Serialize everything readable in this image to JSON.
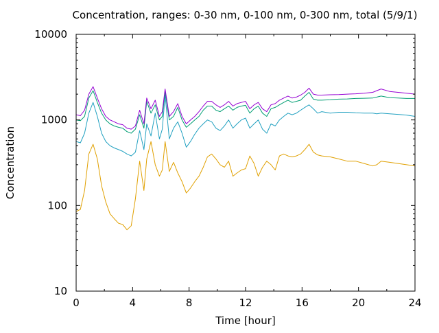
{
  "chart_data": {
    "type": "line",
    "title": "Concentration, ranges: 0-30 nm, 0-100 nm, 0-300 nm, total (5/9/1)",
    "xlabel": "Time [hour]",
    "ylabel": "Concentration",
    "xlim": [
      0,
      24
    ],
    "ylim": [
      10,
      10000
    ],
    "y_scale": "log",
    "grid": false,
    "x_ticks": [
      0,
      4,
      8,
      12,
      16,
      20,
      24
    ],
    "x_tick_labels": [
      "0",
      "4",
      "8",
      "12",
      "16",
      "20",
      "24"
    ],
    "y_ticks": [
      10,
      100,
      1000,
      10000
    ],
    "y_tick_labels": [
      "10",
      "100",
      "1000",
      "10000"
    ],
    "x": [
      0,
      0.3,
      0.6,
      0.9,
      1.2,
      1.5,
      1.8,
      2.1,
      2.4,
      2.7,
      3.0,
      3.3,
      3.6,
      3.9,
      4.2,
      4.5,
      4.8,
      5.0,
      5.3,
      5.6,
      5.9,
      6.1,
      6.3,
      6.6,
      6.9,
      7.2,
      7.5,
      7.8,
      8.1,
      8.4,
      8.7,
      9.0,
      9.3,
      9.6,
      9.9,
      10.2,
      10.5,
      10.8,
      11.1,
      11.4,
      11.7,
      12.0,
      12.3,
      12.6,
      12.9,
      13.2,
      13.5,
      13.8,
      14.1,
      14.4,
      14.7,
      15.0,
      15.3,
      15.6,
      15.9,
      16.2,
      16.5,
      16.8,
      17.1,
      17.4,
      18.0,
      18.6,
      19.2,
      19.8,
      20.4,
      21.0,
      21.3,
      21.6,
      22.2,
      22.8,
      23.4,
      24.0
    ],
    "series": [
      {
        "color": "#e0a000",
        "values": [
          85,
          90,
          150,
          400,
          520,
          350,
          170,
          110,
          80,
          70,
          62,
          60,
          52,
          58,
          120,
          330,
          150,
          350,
          560,
          300,
          220,
          260,
          560,
          250,
          320,
          240,
          190,
          140,
          160,
          190,
          220,
          280,
          370,
          400,
          350,
          300,
          280,
          330,
          220,
          240,
          260,
          270,
          380,
          310,
          220,
          280,
          330,
          300,
          260,
          380,
          400,
          380,
          370,
          380,
          400,
          450,
          520,
          420,
          390,
          380,
          370,
          350,
          330,
          330,
          310,
          290,
          300,
          330,
          320,
          310,
          300,
          290
        ]
      },
      {
        "color": "#20a0c0",
        "values": [
          560,
          540,
          700,
          1200,
          1600,
          1100,
          700,
          560,
          500,
          470,
          450,
          430,
          400,
          380,
          420,
          750,
          450,
          900,
          650,
          1200,
          600,
          780,
          1950,
          600,
          800,
          950,
          700,
          480,
          560,
          680,
          800,
          900,
          1000,
          950,
          800,
          750,
          850,
          1000,
          800,
          900,
          1000,
          1050,
          800,
          900,
          1000,
          780,
          700,
          900,
          850,
          1000,
          1100,
          1200,
          1150,
          1200,
          1300,
          1400,
          1500,
          1350,
          1200,
          1250,
          1200,
          1230,
          1230,
          1210,
          1200,
          1200,
          1180,
          1200,
          1180,
          1160,
          1140,
          1100
        ]
      },
      {
        "color": "#009e73",
        "values": [
          1000,
          980,
          1100,
          1800,
          2200,
          1600,
          1200,
          1000,
          900,
          850,
          820,
          800,
          730,
          700,
          780,
          1150,
          800,
          1650,
          1200,
          1500,
          1000,
          1100,
          2150,
          1000,
          1100,
          1400,
          1000,
          820,
          900,
          1000,
          1100,
          1300,
          1450,
          1450,
          1300,
          1250,
          1350,
          1450,
          1300,
          1400,
          1450,
          1480,
          1200,
          1350,
          1450,
          1200,
          1100,
          1350,
          1400,
          1500,
          1600,
          1700,
          1600,
          1650,
          1700,
          1900,
          2100,
          1750,
          1700,
          1700,
          1720,
          1750,
          1760,
          1780,
          1790,
          1800,
          1850,
          1900,
          1820,
          1800,
          1780,
          1780
        ]
      },
      {
        "color": "#9400d3",
        "values": [
          1150,
          1120,
          1300,
          2000,
          2450,
          1800,
          1350,
          1100,
          1000,
          950,
          900,
          880,
          800,
          780,
          850,
          1300,
          900,
          1800,
          1350,
          1700,
          1100,
          1250,
          2300,
          1100,
          1250,
          1550,
          1100,
          900,
          1000,
          1100,
          1250,
          1450,
          1650,
          1650,
          1500,
          1400,
          1500,
          1650,
          1450,
          1550,
          1600,
          1650,
          1350,
          1500,
          1600,
          1350,
          1250,
          1500,
          1550,
          1700,
          1800,
          1900,
          1800,
          1850,
          1950,
          2100,
          2350,
          2000,
          1950,
          1950,
          1970,
          1980,
          2000,
          2020,
          2050,
          2100,
          2200,
          2300,
          2150,
          2100,
          2050,
          2000
        ]
      }
    ]
  }
}
